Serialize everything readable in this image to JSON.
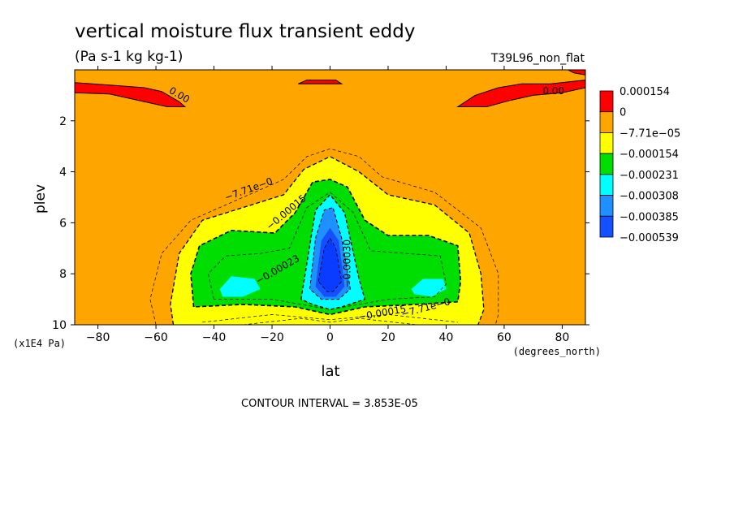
{
  "chart_data": {
    "type": "contour",
    "title": "vertical moisture flux transient eddy",
    "units": "(Pa s-1 kg kg-1)",
    "run_label": "T39L96_non_flat",
    "xlabel": "lat",
    "xunits": "(degrees_north)",
    "ylabel": "plev",
    "yunits": "(x1E4 Pa)",
    "xlim": [
      -88,
      88
    ],
    "ylim": [
      10,
      0
    ],
    "x_ticks": [
      -80,
      -60,
      -40,
      -20,
      0,
      20,
      40,
      60,
      80
    ],
    "x_tick_labels": [
      "−80",
      "−60",
      "−40",
      "−20",
      "0",
      "20",
      "40",
      "60",
      "80"
    ],
    "y_ticks": [
      2,
      4,
      6,
      8,
      10
    ],
    "y_tick_labels": [
      "2",
      "4",
      "6",
      "8",
      "10"
    ],
    "contour_interval": "CONTOUR INTERVAL = 3.853E-05",
    "legend": {
      "placement": "right",
      "levels": [
        {
          "label": "0.000154",
          "color": "#ff0000"
        },
        {
          "label": "0",
          "color": "#ffa500"
        },
        {
          "label": "−7.71e−05",
          "color": "#ffff00"
        },
        {
          "label": "−0.000154",
          "color": "#00dd00"
        },
        {
          "label": "−0.000231",
          "color": "#00ffff"
        },
        {
          "label": "−0.000308",
          "color": "#1e90ff"
        },
        {
          "label": "−0.000385",
          "color": "#1450ff"
        },
        {
          "label": "−0.000539",
          "color": ""
        }
      ]
    },
    "contour_labels": [
      {
        "text": "0.00",
        "lat": -52,
        "plev": 1.0,
        "rotate": 30
      },
      {
        "text": "0.00",
        "lat": 77,
        "plev": 0.85,
        "rotate": 0
      },
      {
        "text": "−7.71e−0",
        "lat": -28,
        "plev": 4.7,
        "rotate": -20
      },
      {
        "text": "−0.00015",
        "lat": -15,
        "plev": 5.6,
        "rotate": -40
      },
      {
        "text": "−0.00023",
        "lat": -18,
        "plev": 7.85,
        "rotate": -30
      },
      {
        "text": "−0.00030",
        "lat": 6,
        "plev": 7.6,
        "rotate": -90
      },
      {
        "text": "−0.00015",
        "lat": 18,
        "plev": 9.55,
        "rotate": -10
      },
      {
        "text": "−7.71e−0",
        "lat": 33,
        "plev": 9.35,
        "rotate": -15
      }
    ],
    "data_field": "transient-eddy vertical moisture flux; negative minimum centred near lat 0 at plev about 8, with side lobes near lat ±35 at plev about 8.4 and weak positive values near plev 1 at high latitudes"
  }
}
